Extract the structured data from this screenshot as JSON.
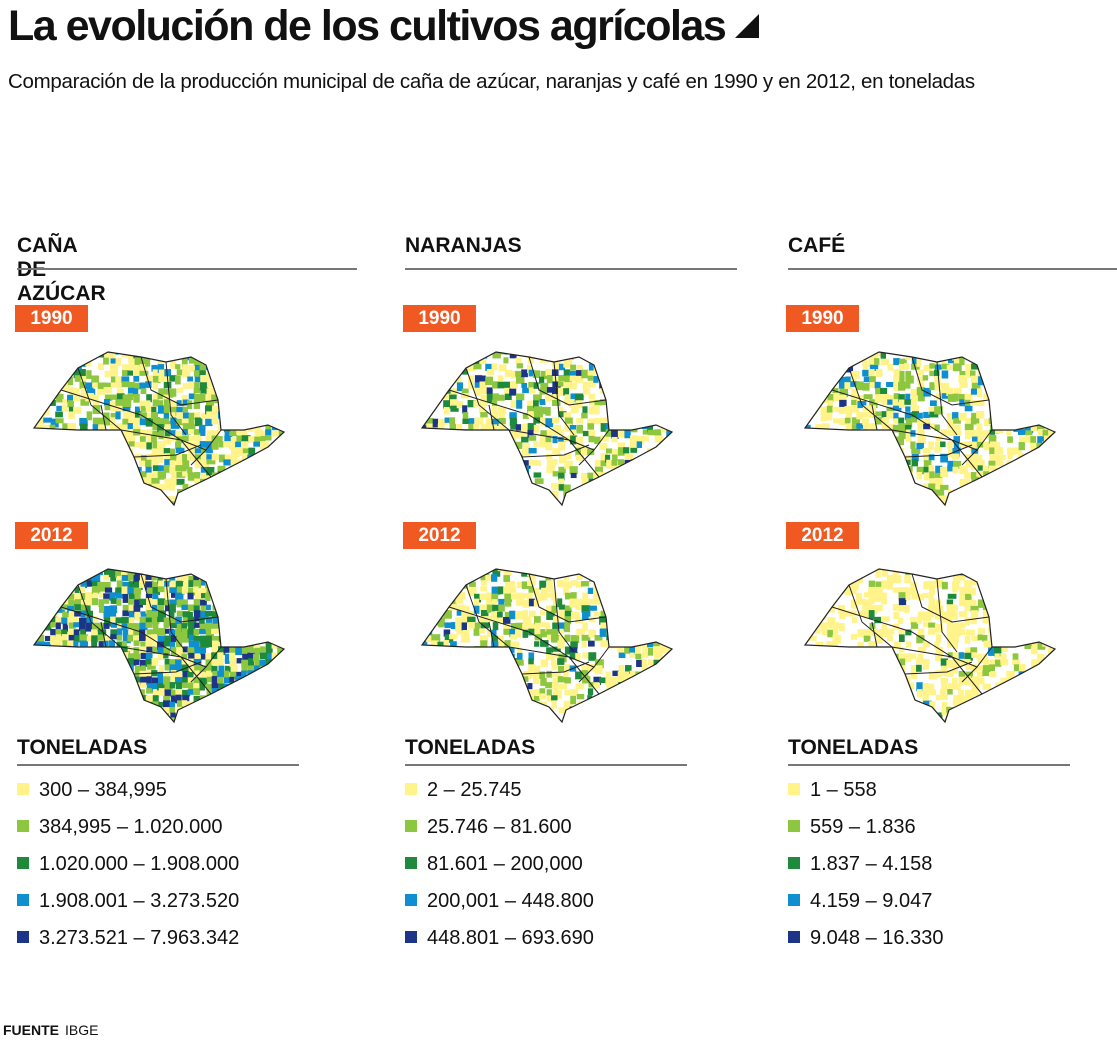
{
  "title": "La evolución de los cultivos agrícolas",
  "title_icon": "triangle-icon",
  "subtitle": "Comparación de la producción municipal de caña de azúcar, naranjas y café en 1990 y en 2012, en toneladas",
  "class_colors": [
    "#fff38a",
    "#8dc63f",
    "#1f8a3c",
    "#0f8fd0",
    "#1c3587"
  ],
  "badge_color": "#f05a22",
  "crops": [
    {
      "name": "CAÑA DE AZÚCAR",
      "years": [
        "1990",
        "2012"
      ],
      "legend_title": "TONELADAS",
      "legend": [
        "300 – 384,995",
        "384,995 – 1.020.000",
        "1.020.000 – 1.908.000",
        "1.908.001 – 3.273.520",
        "3.273.521 – 7.963.342"
      ]
    },
    {
      "name": "NARANJAS",
      "years": [
        "1990",
        "2012"
      ],
      "legend_title": "TONELADAS",
      "legend": [
        "2 – 25.745",
        "25.746 – 81.600",
        "81.601 – 200,000",
        "200,001 – 448.800",
        "448.801 – 693.690"
      ]
    },
    {
      "name": "CAFÉ",
      "years": [
        "1990",
        "2012"
      ],
      "legend_title": "TONELADAS",
      "legend": [
        "1 – 558",
        "559 – 1.836",
        "1.837 – 4.158",
        "4.159 – 9.047",
        "9.048 – 16.330"
      ]
    }
  ],
  "footer": {
    "label": "FUENTE",
    "source": "IBGE"
  }
}
